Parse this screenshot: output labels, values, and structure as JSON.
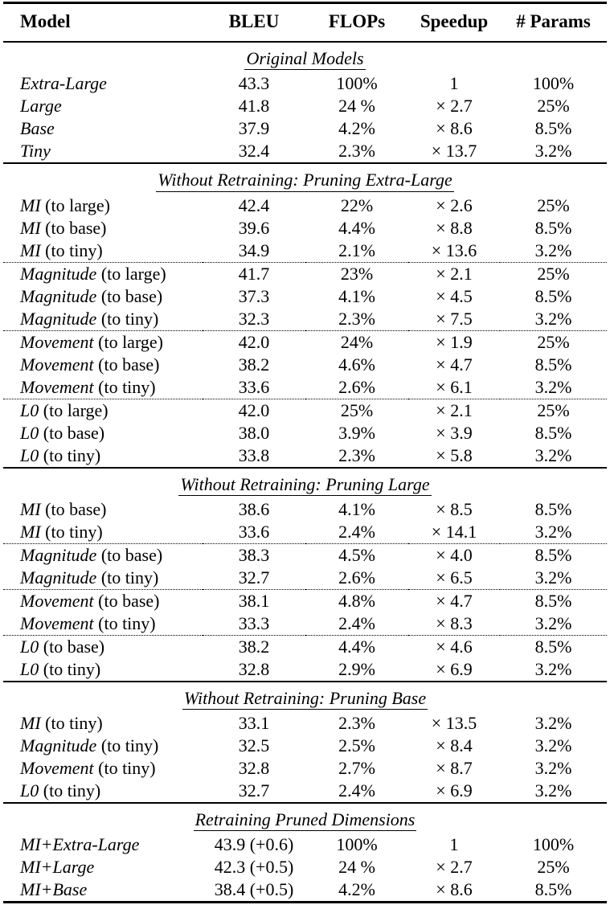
{
  "colors": {
    "text": "#000000",
    "background": "#ffffff",
    "rule": "#000000"
  },
  "header": {
    "columns": [
      "Model",
      "BLEU",
      "FLOPs",
      "Speedup",
      "# Params"
    ]
  },
  "sections": [
    {
      "heading": "Original Models",
      "groups": [
        {
          "rows": [
            {
              "model": {
                "em": "Extra-Large",
                "rest": ""
              },
              "bleu": "43.3",
              "flops": "100%",
              "speedup": "1",
              "params": "100%"
            },
            {
              "model": {
                "em": "Large",
                "rest": ""
              },
              "bleu": "41.8",
              "flops": "24 %",
              "speedup": "× 2.7",
              "params": "25%"
            },
            {
              "model": {
                "em": "Base",
                "rest": ""
              },
              "bleu": "37.9",
              "flops": "4.2%",
              "speedup": "× 8.6",
              "params": "8.5%"
            },
            {
              "model": {
                "em": "Tiny",
                "rest": ""
              },
              "bleu": "32.4",
              "flops": "2.3%",
              "speedup": "× 13.7",
              "params": "3.2%"
            }
          ]
        }
      ]
    },
    {
      "heading": "Without Retraining: Pruning Extra-Large",
      "groups": [
        {
          "rows": [
            {
              "model": {
                "em": "MI",
                "rest": " (to large)"
              },
              "bleu": "42.4",
              "flops": "22%",
              "speedup": "× 2.6",
              "params": "25%"
            },
            {
              "model": {
                "em": "MI",
                "rest": " (to base)"
              },
              "bleu": "39.6",
              "flops": "4.4%",
              "speedup": "× 8.8",
              "params": "8.5%"
            },
            {
              "model": {
                "em": "MI",
                "rest": " (to tiny)"
              },
              "bleu": "34.9",
              "flops": "2.1%",
              "speedup": "× 13.6",
              "params": "3.2%"
            }
          ]
        },
        {
          "rows": [
            {
              "model": {
                "em": "Magnitude",
                "rest": " (to large)"
              },
              "bleu": "41.7",
              "flops": "23%",
              "speedup": "× 2.1",
              "params": "25%"
            },
            {
              "model": {
                "em": "Magnitude",
                "rest": " (to base)"
              },
              "bleu": "37.3",
              "flops": "4.1%",
              "speedup": "× 4.5",
              "params": "8.5%"
            },
            {
              "model": {
                "em": "Magnitude",
                "rest": " (to tiny)"
              },
              "bleu": "32.3",
              "flops": "2.3%",
              "speedup": "× 7.5",
              "params": "3.2%"
            }
          ]
        },
        {
          "rows": [
            {
              "model": {
                "em": "Movement",
                "rest": " (to large)"
              },
              "bleu": "42.0",
              "flops": "24%",
              "speedup": "× 1.9",
              "params": "25%"
            },
            {
              "model": {
                "em": "Movement",
                "rest": " (to base)"
              },
              "bleu": "38.2",
              "flops": "4.6%",
              "speedup": "× 4.7",
              "params": "8.5%"
            },
            {
              "model": {
                "em": "Movement",
                "rest": " (to tiny)"
              },
              "bleu": "33.6",
              "flops": "2.6%",
              "speedup": "× 6.1",
              "params": "3.2%"
            }
          ]
        },
        {
          "rows": [
            {
              "model": {
                "em": "L0",
                "rest": " (to large)"
              },
              "bleu": "42.0",
              "flops": "25%",
              "speedup": "× 2.1",
              "params": "25%"
            },
            {
              "model": {
                "em": "L0",
                "rest": " (to base)"
              },
              "bleu": "38.0",
              "flops": "3.9%",
              "speedup": "× 3.9",
              "params": "8.5%"
            },
            {
              "model": {
                "em": "L0",
                "rest": " (to tiny)"
              },
              "bleu": "33.8",
              "flops": "2.3%",
              "speedup": "× 5.8",
              "params": "3.2%"
            }
          ]
        }
      ]
    },
    {
      "heading": "Without Retraining: Pruning Large",
      "groups": [
        {
          "rows": [
            {
              "model": {
                "em": "MI",
                "rest": " (to base)"
              },
              "bleu": "38.6",
              "flops": "4.1%",
              "speedup": "× 8.5",
              "params": "8.5%"
            },
            {
              "model": {
                "em": "MI",
                "rest": " (to tiny)"
              },
              "bleu": "33.6",
              "flops": "2.4%",
              "speedup": "× 14.1",
              "params": "3.2%"
            }
          ]
        },
        {
          "rows": [
            {
              "model": {
                "em": "Magnitude",
                "rest": " (to base)"
              },
              "bleu": "38.3",
              "flops": "4.5%",
              "speedup": "× 4.0",
              "params": "8.5%"
            },
            {
              "model": {
                "em": "Magnitude",
                "rest": " (to tiny)"
              },
              "bleu": "32.7",
              "flops": "2.6%",
              "speedup": "× 6.5",
              "params": "3.2%"
            }
          ]
        },
        {
          "rows": [
            {
              "model": {
                "em": "Movement",
                "rest": " (to base)"
              },
              "bleu": "38.1",
              "flops": "4.8%",
              "speedup": "× 4.7",
              "params": "8.5%"
            },
            {
              "model": {
                "em": "Movement",
                "rest": " (to tiny)"
              },
              "bleu": "33.3",
              "flops": "2.4%",
              "speedup": "× 8.3",
              "params": "3.2%"
            }
          ]
        },
        {
          "rows": [
            {
              "model": {
                "em": "L0",
                "rest": " (to base)"
              },
              "bleu": "38.2",
              "flops": "4.4%",
              "speedup": "× 4.6",
              "params": "8.5%"
            },
            {
              "model": {
                "em": "L0",
                "rest": " (to tiny)"
              },
              "bleu": "32.8",
              "flops": "2.9%",
              "speedup": "× 6.9",
              "params": "3.2%"
            }
          ]
        }
      ]
    },
    {
      "heading": "Without Retraining: Pruning Base",
      "groups": [
        {
          "rows": [
            {
              "model": {
                "em": "MI",
                "rest": " (to tiny)"
              },
              "bleu": "33.1",
              "flops": "2.3%",
              "speedup": "× 13.5",
              "params": "3.2%"
            },
            {
              "model": {
                "em": "Magnitude",
                "rest": " (to tiny)"
              },
              "bleu": "32.5",
              "flops": "2.5%",
              "speedup": "× 8.4",
              "params": "3.2%"
            },
            {
              "model": {
                "em": "Movement",
                "rest": " (to tiny)"
              },
              "bleu": "32.8",
              "flops": "2.7%",
              "speedup": "× 8.7",
              "params": "3.2%"
            },
            {
              "model": {
                "em": "L0",
                "rest": " (to tiny)"
              },
              "bleu": "32.7",
              "flops": "2.4%",
              "speedup": "× 6.9",
              "params": "3.2%"
            }
          ]
        }
      ]
    },
    {
      "heading": "Retraining Pruned Dimensions",
      "groups": [
        {
          "rows": [
            {
              "model": {
                "em": "MI+Extra-Large",
                "rest": ""
              },
              "bleu": "43.9 (+0.6)",
              "flops": "100%",
              "speedup": "1",
              "params": "100%"
            },
            {
              "model": {
                "em": "MI+Large",
                "rest": ""
              },
              "bleu": "42.3 (+0.5)",
              "flops": "24 %",
              "speedup": "× 2.7",
              "params": "25%"
            },
            {
              "model": {
                "em": "MI+Base",
                "rest": ""
              },
              "bleu": "38.4 (+0.5)",
              "flops": "4.2%",
              "speedup": "× 8.6",
              "params": "8.5%"
            }
          ]
        }
      ]
    }
  ]
}
